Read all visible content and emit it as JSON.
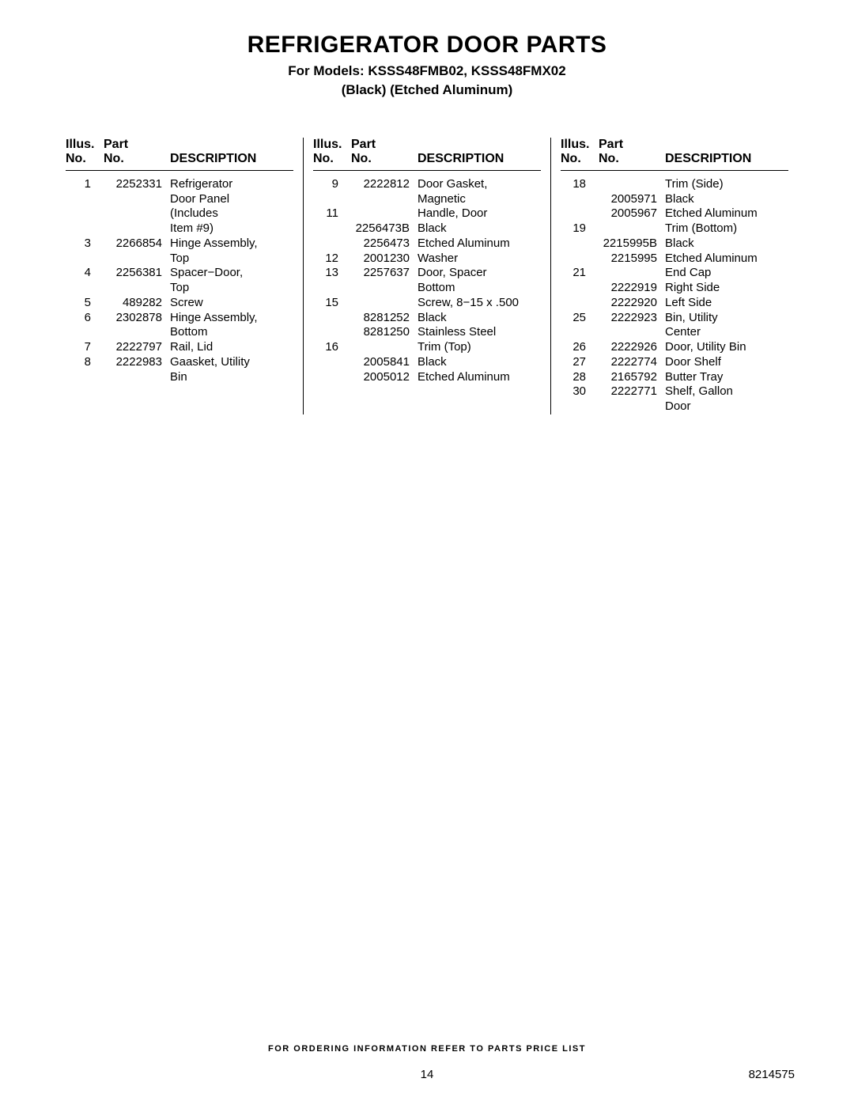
{
  "header": {
    "title": "REFRIGERATOR DOOR PARTS",
    "subtitle": "For Models: KSSS48FMB02, KSSS48FMX02",
    "finishes": "(Black)    (Etched Aluminum)"
  },
  "columnHeaders": {
    "illus_line1": "Illus.",
    "illus_line2": "No.",
    "part_line1": "Part",
    "part_line2": "No.",
    "desc": "DESCRIPTION"
  },
  "col1": [
    {
      "illus": "1",
      "part": "2252331",
      "desc": "Refrigerator"
    },
    {
      "illus": "",
      "part": "",
      "desc": "Door Panel"
    },
    {
      "illus": "",
      "part": "",
      "desc": "(Includes"
    },
    {
      "illus": "",
      "part": "",
      "desc": "Item #9)"
    },
    {
      "illus": "3",
      "part": "2266854",
      "desc": "Hinge Assembly,"
    },
    {
      "illus": "",
      "part": "",
      "desc": "Top"
    },
    {
      "illus": "4",
      "part": "2256381",
      "desc": "Spacer−Door,"
    },
    {
      "illus": "",
      "part": "",
      "desc": "Top"
    },
    {
      "illus": "5",
      "part": "489282",
      "desc": "Screw"
    },
    {
      "illus": "6",
      "part": "2302878",
      "desc": "Hinge Assembly,"
    },
    {
      "illus": "",
      "part": "",
      "desc": "Bottom"
    },
    {
      "illus": "7",
      "part": "2222797",
      "desc": "Rail, Lid"
    },
    {
      "illus": "8",
      "part": "2222983",
      "desc": "Gaasket, Utility"
    },
    {
      "illus": "",
      "part": "",
      "desc": "Bin"
    }
  ],
  "col2": [
    {
      "illus": "9",
      "part": "2222812",
      "desc": "Door Gasket,"
    },
    {
      "illus": "",
      "part": "",
      "desc": "Magnetic"
    },
    {
      "illus": "11",
      "part": "",
      "desc": "Handle, Door"
    },
    {
      "illus": "",
      "part": "2256473B",
      "desc": "Black"
    },
    {
      "illus": "",
      "part": "2256473",
      "desc": "Etched Aluminum"
    },
    {
      "illus": "12",
      "part": "2001230",
      "desc": "Washer"
    },
    {
      "illus": "13",
      "part": "2257637",
      "desc": "Door, Spacer"
    },
    {
      "illus": "",
      "part": "",
      "desc": "Bottom"
    },
    {
      "illus": "15",
      "part": "",
      "desc": "Screw, 8−15 x .500"
    },
    {
      "illus": "",
      "part": "8281252",
      "desc": "Black"
    },
    {
      "illus": "",
      "part": "8281250",
      "desc": "Stainless Steel"
    },
    {
      "illus": "16",
      "part": "",
      "desc": "Trim (Top)"
    },
    {
      "illus": "",
      "part": "2005841",
      "desc": "Black"
    },
    {
      "illus": "",
      "part": "2005012",
      "desc": "Etched Aluminum"
    }
  ],
  "col3": [
    {
      "illus": "18",
      "part": "",
      "desc": "Trim (Side)"
    },
    {
      "illus": "",
      "part": "2005971",
      "desc": "Black"
    },
    {
      "illus": "",
      "part": "2005967",
      "desc": "Etched Aluminum"
    },
    {
      "illus": "19",
      "part": "",
      "desc": "Trim (Bottom)"
    },
    {
      "illus": "",
      "part": "2215995B",
      "desc": "Black"
    },
    {
      "illus": "",
      "part": "2215995",
      "desc": "Etched Aluminum"
    },
    {
      "illus": "21",
      "part": "",
      "desc": "End Cap"
    },
    {
      "illus": "",
      "part": "2222919",
      "desc": "Right Side"
    },
    {
      "illus": "",
      "part": "2222920",
      "desc": "Left Side"
    },
    {
      "illus": "25",
      "part": "2222923",
      "desc": "Bin, Utility"
    },
    {
      "illus": "",
      "part": "",
      "desc": "Center"
    },
    {
      "illus": "26",
      "part": "2222926",
      "desc": "Door, Utility Bin"
    },
    {
      "illus": "27",
      "part": "2222774",
      "desc": "Door Shelf"
    },
    {
      "illus": "28",
      "part": "2165792",
      "desc": "Butter Tray"
    },
    {
      "illus": "30",
      "part": "2222771",
      "desc": "Shelf, Gallon"
    },
    {
      "illus": "",
      "part": "",
      "desc": "Door"
    }
  ],
  "footer": {
    "note": "FOR ORDERING INFORMATION REFER TO PARTS PRICE LIST",
    "page": "14",
    "docnum": "8214575"
  }
}
